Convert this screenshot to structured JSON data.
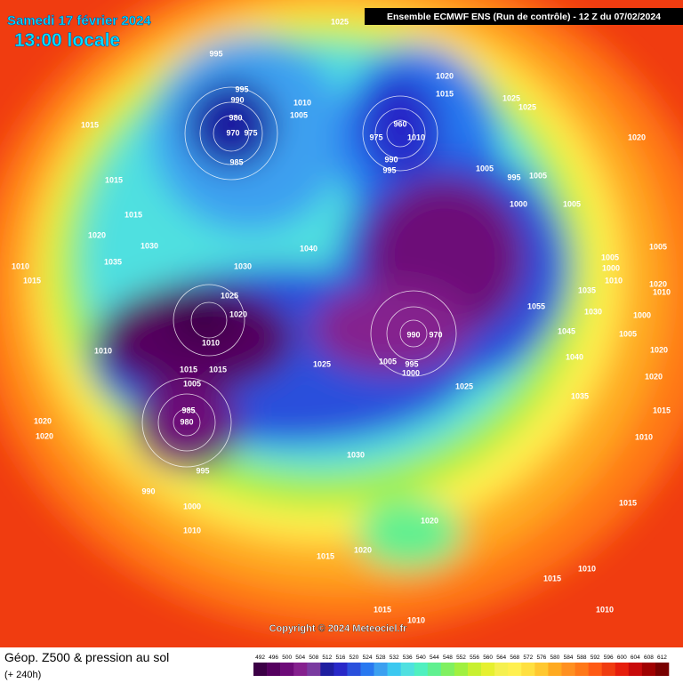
{
  "header": {
    "date": "Samedi 17 février 2024",
    "time": "13:00 locale",
    "model": "Ensemble ECMWF ENS  (Run de contrôle)  -  12 Z du 07/02/2024"
  },
  "map": {
    "copyright": "Copyright © 2024 Meteociel.fr",
    "isobar_labels": [
      1025,
      995,
      995,
      990,
      980,
      970,
      975,
      985,
      1010,
      1005,
      1020,
      1015,
      960,
      975,
      1010,
      990,
      995,
      1025,
      1025,
      1020,
      1005,
      995,
      1005,
      1000,
      1005,
      1015,
      1015,
      1015,
      1020,
      1030,
      1035,
      1040,
      1030,
      1025,
      1020,
      1010,
      1015,
      990,
      1005,
      970,
      995,
      1000,
      1025,
      1015,
      1005,
      985,
      980,
      995,
      990,
      1000,
      1010,
      1020,
      1020,
      1030,
      1020,
      1020,
      1015,
      1010,
      1015,
      1010,
      1025,
      1015,
      1010,
      1035,
      1040,
      1045,
      1055,
      1035,
      1030,
      1005,
      1000,
      1010,
      1005,
      1020,
      1010,
      1015,
      1020,
      1005,
      1000,
      1020,
      1015,
      1010,
      1015,
      1010,
      1010
    ]
  },
  "legend": {
    "title": "Géop. Z500 & pression au sol",
    "subtitle": "(+ 240h)",
    "ticks": [
      492,
      496,
      500,
      504,
      508,
      512,
      516,
      520,
      524,
      528,
      532,
      536,
      540,
      544,
      548,
      552,
      556,
      560,
      564,
      568,
      572,
      576,
      580,
      584,
      588,
      592,
      596,
      600,
      604,
      608,
      612
    ],
    "colors": [
      "#3c0046",
      "#55005f",
      "#6d0a78",
      "#85208e",
      "#7a3aa0",
      "#1e1ea0",
      "#2828c8",
      "#2a50dc",
      "#2878f0",
      "#3ca0f0",
      "#3cc8f0",
      "#50e0e0",
      "#50f0c0",
      "#60f090",
      "#80f060",
      "#a0f040",
      "#c8f030",
      "#e6f030",
      "#f5f050",
      "#fff050",
      "#ffe040",
      "#ffc830",
      "#ffaa20",
      "#ff9020",
      "#ff7818",
      "#ff5a14",
      "#f03c10",
      "#e61e0c",
      "#c80a0a",
      "#a00000",
      "#780000"
    ]
  }
}
